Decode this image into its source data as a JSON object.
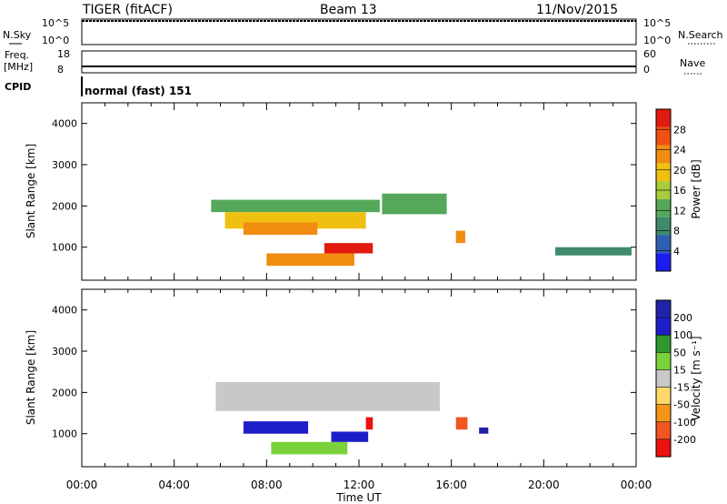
{
  "header": {
    "title": "TIGER (fitACF)",
    "beam": "Beam 13",
    "date": "11/Nov/2015"
  },
  "strips": {
    "nsky_label": "N.Sky",
    "nsearch_label": "N.Search",
    "nsky_ticks": [
      "10^5",
      "10^0"
    ],
    "nsearch_ticks": [
      "10^5",
      "10^0"
    ],
    "freq_label": "Freq.",
    "freq_unit": "[MHz]",
    "freq_ticks": [
      "18",
      "8"
    ],
    "nave_label": "Nave",
    "nave_ticks": [
      "60",
      "0"
    ],
    "cpid_label": "CPID",
    "cpid_value": "normal (fast) 151"
  },
  "colors": {
    "power": [
      "#1c1cf0",
      "#2f5fb0",
      "#3f8a6a",
      "#55a85a",
      "#a8cc3a",
      "#f0c010",
      "#f08c10",
      "#f05010",
      "#e21a10"
    ],
    "velocity": [
      "#ee1111",
      "#f05522",
      "#f59518",
      "#ffd86a",
      "#c8c8c8",
      "#7ad23a",
      "#2e9a2e",
      "#1e1ec8",
      "#2222a8"
    ]
  },
  "chart_data": [
    {
      "type": "heatmap",
      "name": "power",
      "ylabel": "Slant Range [km]",
      "yticks": [
        "1000",
        "2000",
        "3000",
        "4000"
      ],
      "ylim": [
        200,
        4500
      ],
      "xlim": [
        "00:00",
        "24:00"
      ],
      "colorbar_label": "Power [dB]",
      "colorbar_ticks": [
        "4",
        "8",
        "12",
        "16",
        "20",
        "24",
        "28"
      ],
      "colorbar_range": [
        0,
        32
      ],
      "regions": [
        {
          "t0": 5.6,
          "t1": 12.9,
          "r0": 1850,
          "r1": 2150,
          "value": 11
        },
        {
          "t0": 6.2,
          "t1": 12.3,
          "r0": 1450,
          "r1": 1850,
          "value": 20
        },
        {
          "t0": 7.0,
          "t1": 10.2,
          "r0": 1300,
          "r1": 1600,
          "value": 24
        },
        {
          "t0": 10.5,
          "t1": 12.6,
          "r0": 850,
          "r1": 1100,
          "value": 29
        },
        {
          "t0": 8.0,
          "t1": 11.8,
          "r0": 550,
          "r1": 850,
          "value": 22
        },
        {
          "t0": 13.0,
          "t1": 15.8,
          "r0": 1800,
          "r1": 2300,
          "value": 14
        },
        {
          "t0": 16.2,
          "t1": 16.6,
          "r0": 1100,
          "r1": 1400,
          "value": 22
        },
        {
          "t0": 20.5,
          "t1": 23.8,
          "r0": 800,
          "r1": 1000,
          "value": 9
        }
      ]
    },
    {
      "type": "heatmap",
      "name": "velocity",
      "ylabel": "Slant Range [km]",
      "yticks": [
        "1000",
        "2000",
        "3000",
        "4000"
      ],
      "ylim": [
        200,
        4500
      ],
      "xlabel": "Time UT",
      "xticks": [
        "00:00",
        "04:00",
        "08:00",
        "12:00",
        "16:00",
        "20:00",
        "00:00"
      ],
      "colorbar_label": "Velocity [m s⁻¹]",
      "colorbar_ticks": [
        "200",
        "100",
        "50",
        "15",
        "-15",
        "-50",
        "-100",
        "-200"
      ],
      "colorbar_range": [
        -250,
        250
      ],
      "regions": [
        {
          "t0": 5.8,
          "t1": 15.5,
          "r0": 1550,
          "r1": 2250,
          "value": 0
        },
        {
          "t0": 7.0,
          "t1": 9.8,
          "r0": 1000,
          "r1": 1300,
          "value": 150
        },
        {
          "t0": 8.2,
          "t1": 11.5,
          "r0": 500,
          "r1": 800,
          "value": 70
        },
        {
          "t0": 10.8,
          "t1": 12.4,
          "r0": 800,
          "r1": 1050,
          "value": 180
        },
        {
          "t0": 16.2,
          "t1": 16.7,
          "r0": 1100,
          "r1": 1400,
          "value": -180
        },
        {
          "t0": 17.2,
          "t1": 17.6,
          "r0": 1000,
          "r1": 1150,
          "value": 200
        },
        {
          "t0": 12.3,
          "t1": 12.6,
          "r0": 1100,
          "r1": 1400,
          "value": -210
        }
      ]
    }
  ]
}
